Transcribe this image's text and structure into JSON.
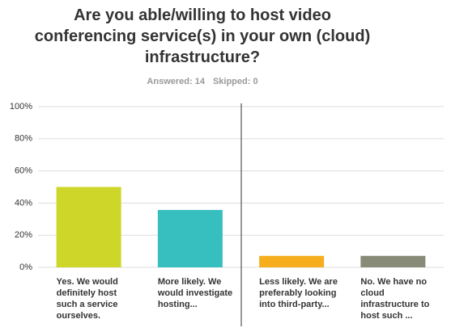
{
  "chart_data": {
    "type": "bar",
    "title": "Are you able/willing to host video conferencing service(s) in your own (cloud) infrastructure?",
    "answered": "Answered: 14",
    "skipped": "Skipped: 0",
    "categories": [
      "Yes. We would definitely host such a service ourselves.",
      "More likely. We would investigate hosting...",
      "Less likely. We are preferably looking into third-party...",
      "No. We have no cloud infrastructure to host such ..."
    ],
    "values": [
      50,
      35.71,
      7.14,
      7.14
    ],
    "colors": [
      "#cdd629",
      "#37bfbf",
      "#f6ae1e",
      "#888b78"
    ],
    "ylim": [
      0,
      100
    ],
    "yticks": [
      {
        "value": 0,
        "label": "0%"
      },
      {
        "value": 20,
        "label": "20%"
      },
      {
        "value": 40,
        "label": "40%"
      },
      {
        "value": 60,
        "label": "60%"
      },
      {
        "value": 80,
        "label": "80%"
      },
      {
        "value": 100,
        "label": "100%"
      }
    ],
    "grid": true
  }
}
